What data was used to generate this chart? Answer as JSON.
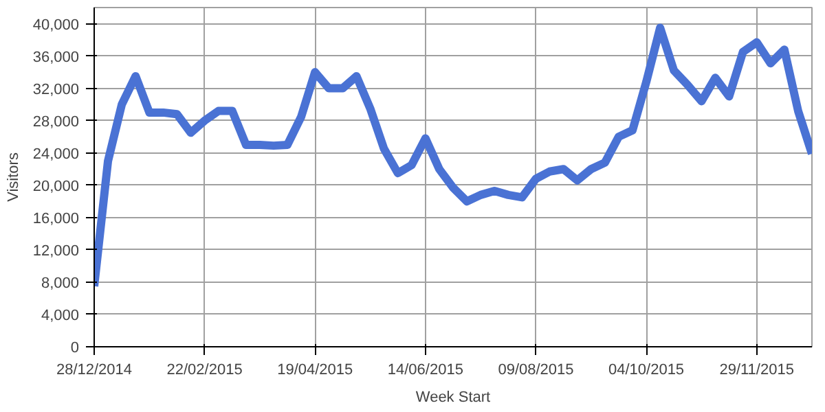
{
  "chart_data": {
    "type": "line",
    "xlabel": "Week Start",
    "ylabel": "Visitors",
    "x": [
      "2014-12-28",
      "2015-01-04",
      "2015-01-11",
      "2015-01-18",
      "2015-01-25",
      "2015-02-01",
      "2015-02-08",
      "2015-02-15",
      "2015-02-22",
      "2015-03-01",
      "2015-03-08",
      "2015-03-15",
      "2015-03-22",
      "2015-03-29",
      "2015-04-05",
      "2015-04-12",
      "2015-04-19",
      "2015-04-26",
      "2015-05-03",
      "2015-05-10",
      "2015-05-17",
      "2015-05-24",
      "2015-05-31",
      "2015-06-07",
      "2015-06-14",
      "2015-06-21",
      "2015-06-28",
      "2015-07-05",
      "2015-07-12",
      "2015-07-19",
      "2015-07-26",
      "2015-08-02",
      "2015-08-09",
      "2015-08-16",
      "2015-08-23",
      "2015-08-30",
      "2015-09-06",
      "2015-09-13",
      "2015-09-20",
      "2015-09-27",
      "2015-10-04",
      "2015-10-11",
      "2015-10-18",
      "2015-10-25",
      "2015-11-01",
      "2015-11-08",
      "2015-11-15",
      "2015-11-22",
      "2015-11-29",
      "2015-12-06",
      "2015-12-13",
      "2015-12-20",
      "2015-12-27"
    ],
    "series": [
      {
        "color": "#4a72d4",
        "values": [
          7500,
          23000,
          30000,
          33500,
          29000,
          29000,
          28800,
          26500,
          28000,
          29200,
          29200,
          25000,
          25000,
          24900,
          25000,
          28500,
          34000,
          32000,
          32000,
          33500,
          29500,
          24500,
          21500,
          22500,
          25800,
          22000,
          19700,
          18000,
          18800,
          19300,
          18800,
          18500,
          20800,
          21700,
          22000,
          20600,
          22000,
          22800,
          26000,
          26800,
          32800,
          39500,
          34200,
          32400,
          30400,
          33300,
          31000,
          36500,
          37700,
          35100,
          36800,
          29200,
          23900
        ]
      }
    ],
    "xlim": [
      "2014-12-28",
      "2015-12-27"
    ],
    "xticks": [
      {
        "value": "2014-12-28",
        "label": "28/12/2014"
      },
      {
        "value": "2015-02-22",
        "label": "22/02/2015"
      },
      {
        "value": "2015-04-19",
        "label": "19/04/2015"
      },
      {
        "value": "2015-06-14",
        "label": "14/06/2015"
      },
      {
        "value": "2015-08-09",
        "label": "09/08/2015"
      },
      {
        "value": "2015-10-04",
        "label": "04/10/2015"
      },
      {
        "value": "2015-11-29",
        "label": "29/11/2015"
      }
    ],
    "ylim": [
      0,
      42000
    ],
    "yticks": [
      0,
      {
        "value": 4000,
        "label": "4,000"
      },
      {
        "value": 8000,
        "label": "8,000"
      },
      {
        "value": 12000,
        "label": "12,000"
      },
      {
        "value": 16000,
        "label": "16,000"
      },
      {
        "value": 20000,
        "label": "20,000"
      },
      {
        "value": 24000,
        "label": "24,000"
      },
      {
        "value": 28000,
        "label": "28,000"
      },
      {
        "value": 32000,
        "label": "32,000"
      },
      {
        "value": 36000,
        "label": "36,000"
      },
      {
        "value": 40000,
        "label": "40,000"
      }
    ],
    "grid": true,
    "marker": "none",
    "line_style": "solid"
  }
}
